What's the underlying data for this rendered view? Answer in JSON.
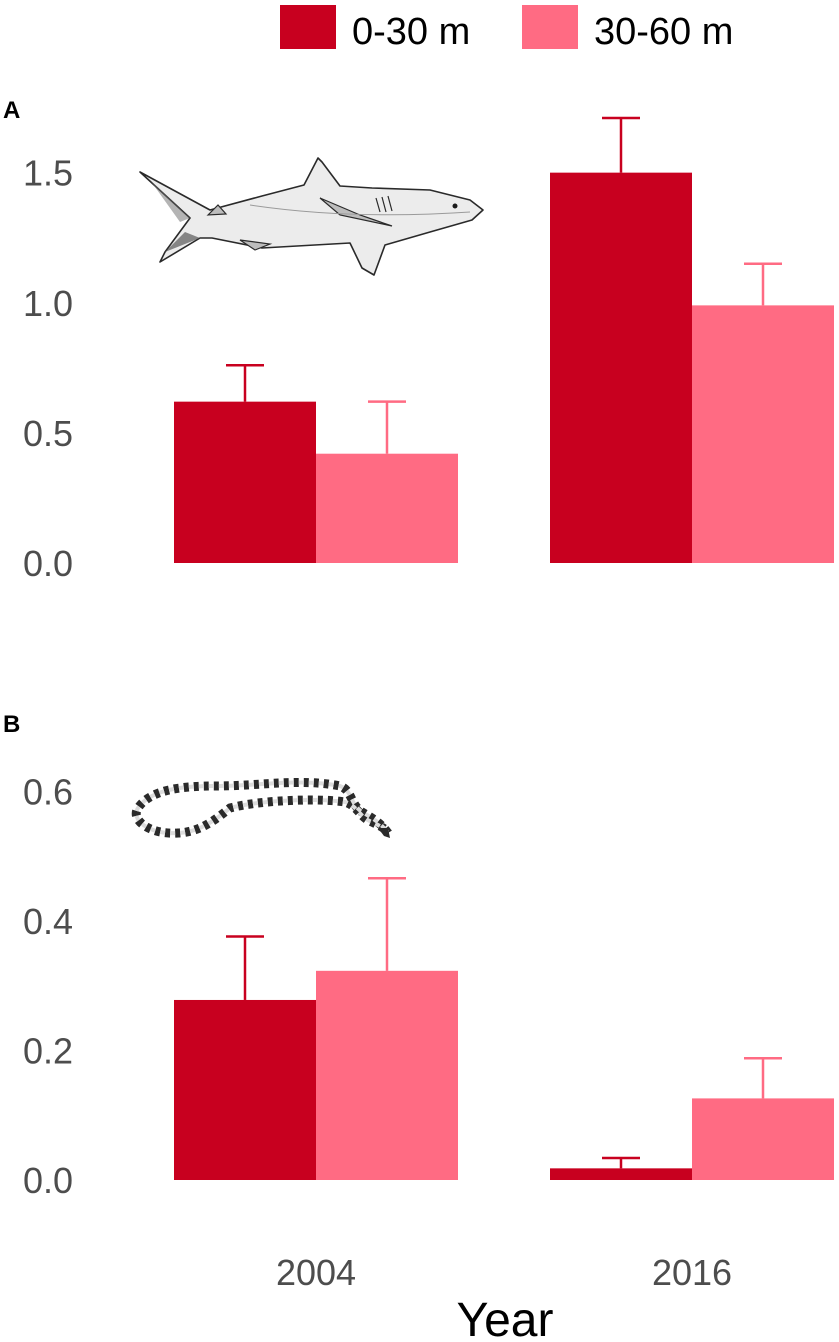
{
  "legend": {
    "items": [
      {
        "label": "0-30 m",
        "color": "#c8001f"
      },
      {
        "label": "30-60 m",
        "color": "#ff6b83"
      }
    ]
  },
  "xlabel": "Year",
  "chart_data": [
    {
      "type": "bar",
      "panel": "A",
      "categories": [
        "2004",
        "2016"
      ],
      "series": [
        {
          "name": "0-30 m",
          "values": [
            0.62,
            1.5
          ],
          "error_upper": [
            0.76,
            1.71
          ]
        },
        {
          "name": "30-60 m",
          "values": [
            0.42,
            0.99
          ],
          "error_upper": [
            0.62,
            1.15
          ]
        }
      ],
      "yticks": [
        0.0,
        0.5,
        1.0,
        1.5
      ],
      "ytick_labels": [
        "0.0",
        "0.5",
        "1.0",
        "1.5"
      ],
      "ylim": [
        0,
        1.71
      ],
      "grid": false,
      "legend_position": "top",
      "illustration": "shark-illustration"
    },
    {
      "type": "bar",
      "panel": "B",
      "categories": [
        "2004",
        "2016"
      ],
      "series": [
        {
          "name": "0-30 m",
          "values": [
            0.278,
            0.018
          ],
          "error_upper": [
            0.376,
            0.034
          ]
        },
        {
          "name": "30-60 m",
          "values": [
            0.323,
            0.126
          ],
          "error_upper": [
            0.466,
            0.188
          ]
        }
      ],
      "yticks": [
        0.0,
        0.2,
        0.4,
        0.6
      ],
      "ytick_labels": [
        "0.0",
        "0.2",
        "0.4",
        "0.6"
      ],
      "ylim": [
        0,
        0.63
      ],
      "grid": false,
      "illustration": "sea-snake-illustration"
    }
  ]
}
